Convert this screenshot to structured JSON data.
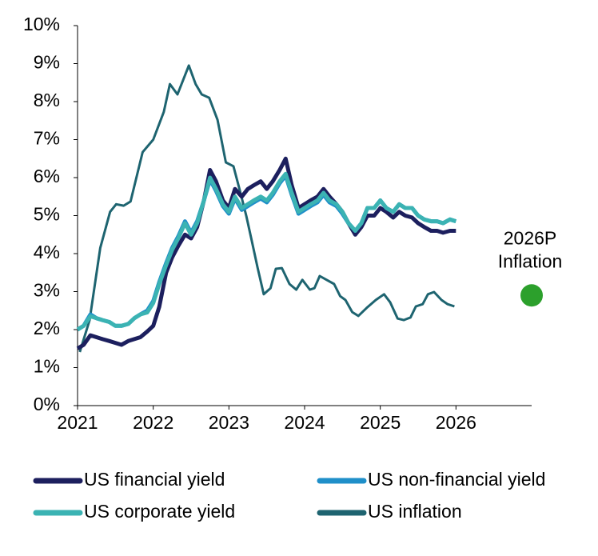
{
  "chart_data": {
    "type": "line",
    "xlim": [
      2021,
      2027
    ],
    "xticks": [
      2021,
      2022,
      2023,
      2024,
      2025,
      2026
    ],
    "ylim": [
      0,
      10
    ],
    "yticks": [
      {
        "value": 0,
        "label": "0%"
      },
      {
        "value": 1,
        "label": "1%"
      },
      {
        "value": 2,
        "label": "2%"
      },
      {
        "value": 3,
        "label": "3%"
      },
      {
        "value": 4,
        "label": "4%"
      },
      {
        "value": 5,
        "label": "5%"
      },
      {
        "value": 6,
        "label": "6%"
      },
      {
        "value": 7,
        "label": "7%"
      },
      {
        "value": 8,
        "label": "8%"
      },
      {
        "value": 9,
        "label": "9%"
      },
      {
        "value": 10,
        "label": "10%"
      }
    ],
    "series": [
      {
        "name": "US financial yield",
        "color": "#1c1f5e",
        "x": [
          2021,
          2021.08,
          2021.17,
          2021.25,
          2021.33,
          2021.42,
          2021.5,
          2021.58,
          2021.67,
          2021.75,
          2021.83,
          2021.92,
          2022,
          2022.08,
          2022.17,
          2022.25,
          2022.33,
          2022.42,
          2022.5,
          2022.58,
          2022.67,
          2022.75,
          2022.83,
          2022.92,
          2023,
          2023.08,
          2023.17,
          2023.25,
          2023.33,
          2023.42,
          2023.5,
          2023.58,
          2023.67,
          2023.75,
          2023.83,
          2023.92,
          2024,
          2024.08,
          2024.17,
          2024.25,
          2024.33,
          2024.42,
          2024.5,
          2024.58,
          2024.67,
          2024.75,
          2024.83,
          2024.92,
          2025,
          2025.08,
          2025.17,
          2025.25,
          2025.33,
          2025.42,
          2025.5,
          2025.58,
          2025.67,
          2025.75,
          2025.83,
          2025.92,
          2026
        ],
        "values": [
          1.5,
          1.6,
          1.85,
          1.8,
          1.75,
          1.7,
          1.65,
          1.6,
          1.7,
          1.75,
          1.8,
          1.95,
          2.1,
          2.6,
          3.5,
          3.9,
          4.2,
          4.5,
          4.4,
          4.7,
          5.4,
          6.2,
          5.9,
          5.4,
          5.2,
          5.7,
          5.5,
          5.7,
          5.8,
          5.9,
          5.7,
          5.9,
          6.2,
          6.5,
          5.8,
          5.2,
          5.3,
          5.4,
          5.5,
          5.7,
          5.5,
          5.3,
          5.1,
          4.8,
          4.5,
          4.7,
          5.0,
          5.0,
          5.2,
          5.1,
          4.95,
          5.1,
          5.0,
          4.95,
          4.8,
          4.7,
          4.6,
          4.6,
          4.55,
          4.6,
          4.6
        ]
      },
      {
        "name": "US non-financial yield",
        "color": "#1f8fc9",
        "x": [
          2021,
          2021.08,
          2021.17,
          2021.25,
          2021.33,
          2021.42,
          2021.5,
          2021.58,
          2021.67,
          2021.75,
          2021.83,
          2021.92,
          2022,
          2022.08,
          2022.17,
          2022.25,
          2022.33,
          2022.42,
          2022.5,
          2022.58,
          2022.67,
          2022.75,
          2022.83,
          2022.92,
          2023,
          2023.08,
          2023.17,
          2023.25,
          2023.33,
          2023.42,
          2023.5,
          2023.58,
          2023.67,
          2023.75,
          2023.83,
          2023.92,
          2024,
          2024.08,
          2024.17,
          2024.25,
          2024.33,
          2024.42,
          2024.5,
          2024.58,
          2024.67,
          2024.75,
          2024.83,
          2024.92,
          2025,
          2025.08,
          2025.17,
          2025.25,
          2025.33,
          2025.42,
          2025.5,
          2025.58,
          2025.67,
          2025.75,
          2025.83,
          2025.92,
          2026
        ],
        "values": [
          2.0,
          2.1,
          2.4,
          2.3,
          2.25,
          2.2,
          2.1,
          2.1,
          2.15,
          2.3,
          2.4,
          2.5,
          2.75,
          3.25,
          3.75,
          4.15,
          4.45,
          4.85,
          4.55,
          4.85,
          5.4,
          5.95,
          5.65,
          5.25,
          5.05,
          5.45,
          5.15,
          5.25,
          5.35,
          5.45,
          5.35,
          5.55,
          5.85,
          6.05,
          5.55,
          5.05,
          5.15,
          5.25,
          5.35,
          5.55,
          5.35,
          5.25,
          5.05,
          4.8,
          4.6,
          4.8,
          5.2,
          5.2,
          5.4,
          5.2,
          5.1,
          5.3,
          5.2,
          5.2,
          5.0,
          4.9,
          4.85,
          4.85,
          4.8,
          4.9,
          4.85
        ]
      },
      {
        "name": "US corporate yield",
        "color": "#3bb3b3",
        "x": [
          2021,
          2021.08,
          2021.17,
          2021.25,
          2021.33,
          2021.42,
          2021.5,
          2021.58,
          2021.67,
          2021.75,
          2021.83,
          2021.92,
          2022,
          2022.08,
          2022.17,
          2022.25,
          2022.33,
          2022.42,
          2022.5,
          2022.58,
          2022.67,
          2022.75,
          2022.83,
          2022.92,
          2023,
          2023.08,
          2023.17,
          2023.25,
          2023.33,
          2023.42,
          2023.5,
          2023.58,
          2023.67,
          2023.75,
          2023.83,
          2023.92,
          2024,
          2024.08,
          2024.17,
          2024.25,
          2024.33,
          2024.42,
          2024.5,
          2024.58,
          2024.67,
          2024.75,
          2024.83,
          2024.92,
          2025,
          2025.08,
          2025.17,
          2025.25,
          2025.33,
          2025.42,
          2025.5,
          2025.58,
          2025.67,
          2025.75,
          2025.83,
          2025.92,
          2026
        ],
        "values": [
          2.0,
          2.1,
          2.35,
          2.3,
          2.25,
          2.2,
          2.1,
          2.1,
          2.15,
          2.3,
          2.4,
          2.45,
          2.7,
          3.2,
          3.7,
          4.1,
          4.4,
          4.8,
          4.5,
          4.8,
          5.4,
          6.0,
          5.7,
          5.3,
          5.1,
          5.5,
          5.2,
          5.3,
          5.4,
          5.5,
          5.4,
          5.6,
          5.9,
          6.1,
          5.6,
          5.1,
          5.2,
          5.3,
          5.4,
          5.6,
          5.4,
          5.3,
          5.1,
          4.8,
          4.6,
          4.8,
          5.2,
          5.2,
          5.4,
          5.2,
          5.1,
          5.3,
          5.2,
          5.2,
          5.0,
          4.9,
          4.85,
          4.85,
          4.8,
          4.9,
          4.85
        ]
      },
      {
        "name": "US inflation",
        "color": "#1e6470",
        "x": [
          2021.03,
          2021.16,
          2021.3,
          2021.43,
          2021.51,
          2021.61,
          2021.7,
          2021.86,
          2022,
          2022.14,
          2022.22,
          2022.32,
          2022.47,
          2022.56,
          2022.64,
          2022.74,
          2022.85,
          2022.96,
          2023.06,
          2023.15,
          2023.23,
          2023.3,
          2023.38,
          2023.46,
          2023.55,
          2023.62,
          2023.7,
          2023.8,
          2023.89,
          2023.97,
          2024.07,
          2024.13,
          2024.2,
          2024.29,
          2024.39,
          2024.47,
          2024.54,
          2024.63,
          2024.71,
          2024.82,
          2024.94,
          2025.05,
          2025.13,
          2025.23,
          2025.31,
          2025.4,
          2025.47,
          2025.56,
          2025.63,
          2025.71,
          2025.81,
          2025.89,
          2025.98
        ],
        "values": [
          1.41,
          2.25,
          4.15,
          5.1,
          5.3,
          5.26,
          5.37,
          6.67,
          7.0,
          7.73,
          8.46,
          8.19,
          8.95,
          8.46,
          8.19,
          8.1,
          7.52,
          6.4,
          6.3,
          5.62,
          4.99,
          4.36,
          3.62,
          2.93,
          3.09,
          3.6,
          3.62,
          3.2,
          3.05,
          3.31,
          3.05,
          3.09,
          3.41,
          3.31,
          3.2,
          2.88,
          2.78,
          2.46,
          2.36,
          2.57,
          2.78,
          2.93,
          2.72,
          2.29,
          2.25,
          2.32,
          2.61,
          2.67,
          2.93,
          2.99,
          2.78,
          2.67,
          2.61
        ]
      }
    ],
    "annotations": [
      {
        "lines": [
          "2026P",
          "Inflation"
        ],
        "x": 2027,
        "y": 2.9,
        "color": "#2ca02c"
      }
    ]
  }
}
